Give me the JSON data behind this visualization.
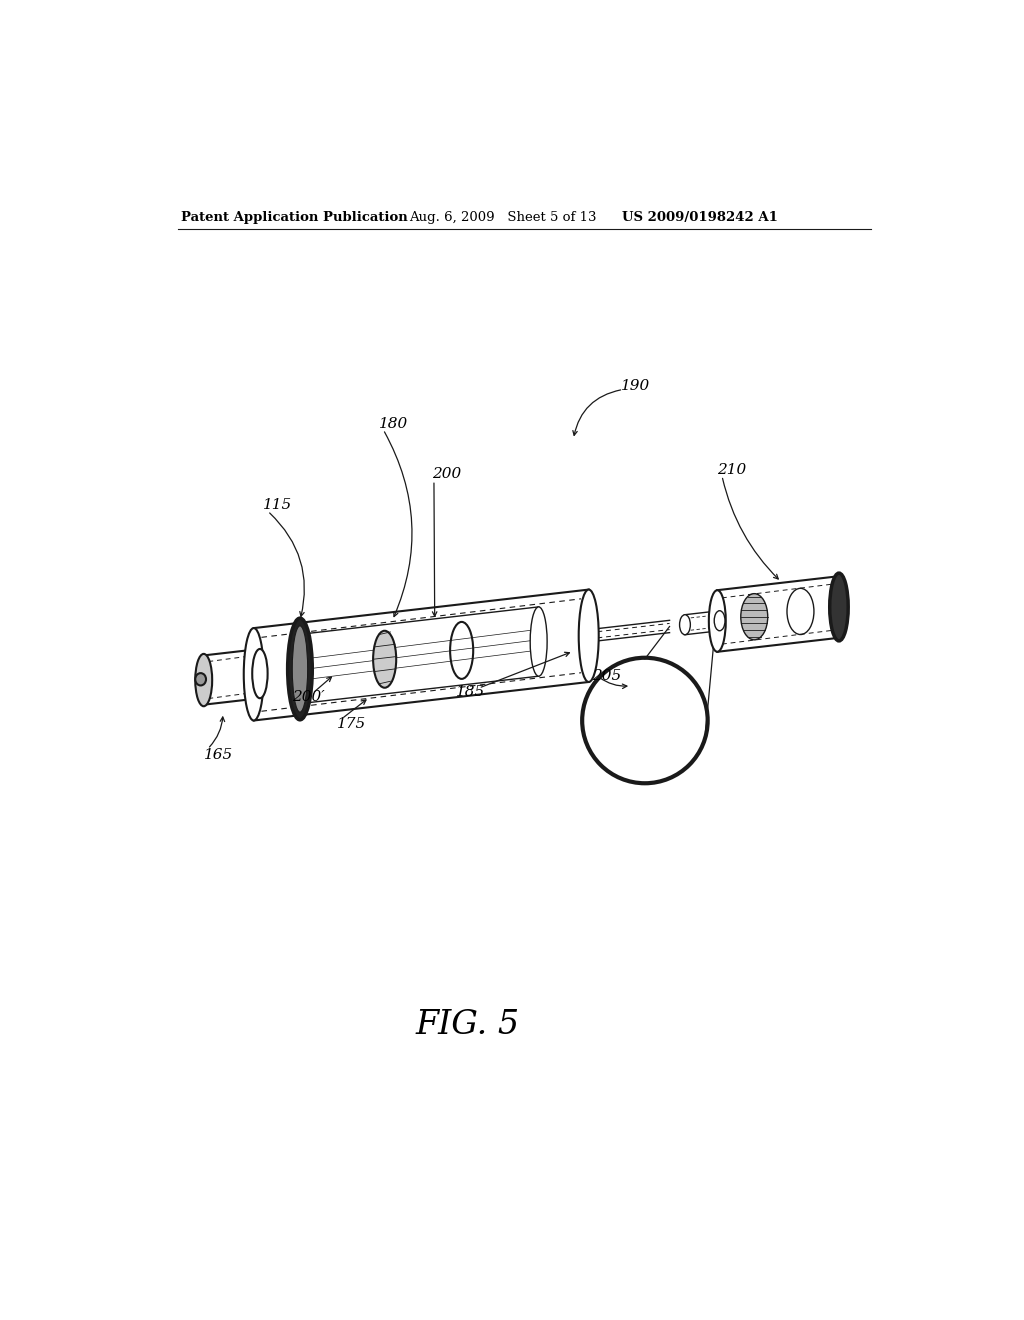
{
  "bg_color": "#ffffff",
  "header_left": "Patent Application Publication",
  "header_mid": "Aug. 6, 2009   Sheet 5 of 13",
  "header_right": "US 2009/0198242 A1",
  "fig_label": "FIG. 5",
  "lc": "#1a1a1a"
}
